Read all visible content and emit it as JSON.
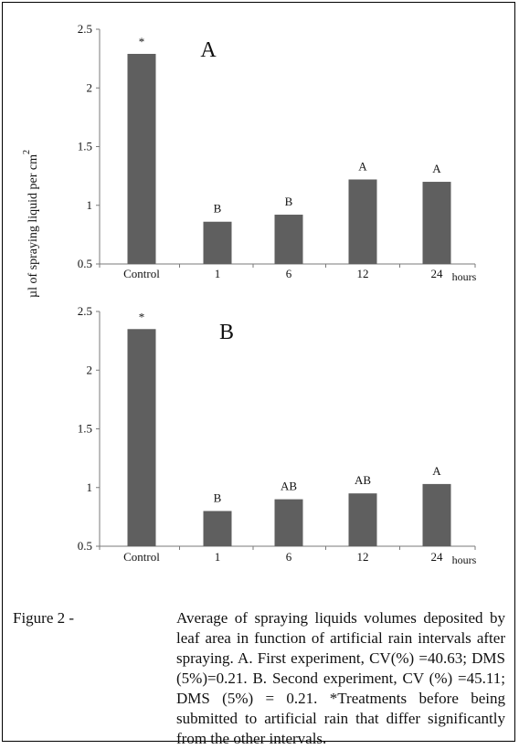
{
  "chart_data": [
    {
      "type": "bar",
      "panel": "A",
      "categories": [
        "Control",
        "1",
        "6",
        "12",
        "24"
      ],
      "values": [
        2.29,
        0.86,
        0.92,
        1.22,
        1.2
      ],
      "data_labels": [
        "*",
        "B",
        "B",
        "A",
        "A"
      ],
      "x_unit": "hours",
      "yticks": [
        "0.5",
        "1",
        "1.5",
        "2",
        "2.5"
      ],
      "ylim": [
        0.5,
        2.5
      ],
      "bar_color": "#5f5f5f",
      "grid": false
    },
    {
      "type": "bar",
      "panel": "B",
      "categories": [
        "Control",
        "1",
        "6",
        "12",
        "24"
      ],
      "values": [
        2.35,
        0.8,
        0.9,
        0.95,
        1.03
      ],
      "data_labels": [
        "*",
        "B",
        "AB",
        "AB",
        "A"
      ],
      "x_unit": "hours",
      "yticks": [
        "0.5",
        "1",
        "1.5",
        "2",
        "2.5"
      ],
      "ylim": [
        0.5,
        2.5
      ],
      "bar_color": "#5f5f5f",
      "grid": false
    }
  ],
  "shared_ylabel": "µl of spraying liquid per cm",
  "shared_ylabel_sup": "2",
  "caption": {
    "prefix": "Figure 2 -",
    "text": "Average of spraying liquids volumes deposited by leaf area in function of artificial rain intervals after spraying. A. First experiment, CV(%) =40.63; DMS (5%)=0.21. B. Second experiment, CV (%) =45.11; DMS (5%) = 0.21. *Treatments before being submitted to artificial rain that differ significantly from the other intervals."
  }
}
